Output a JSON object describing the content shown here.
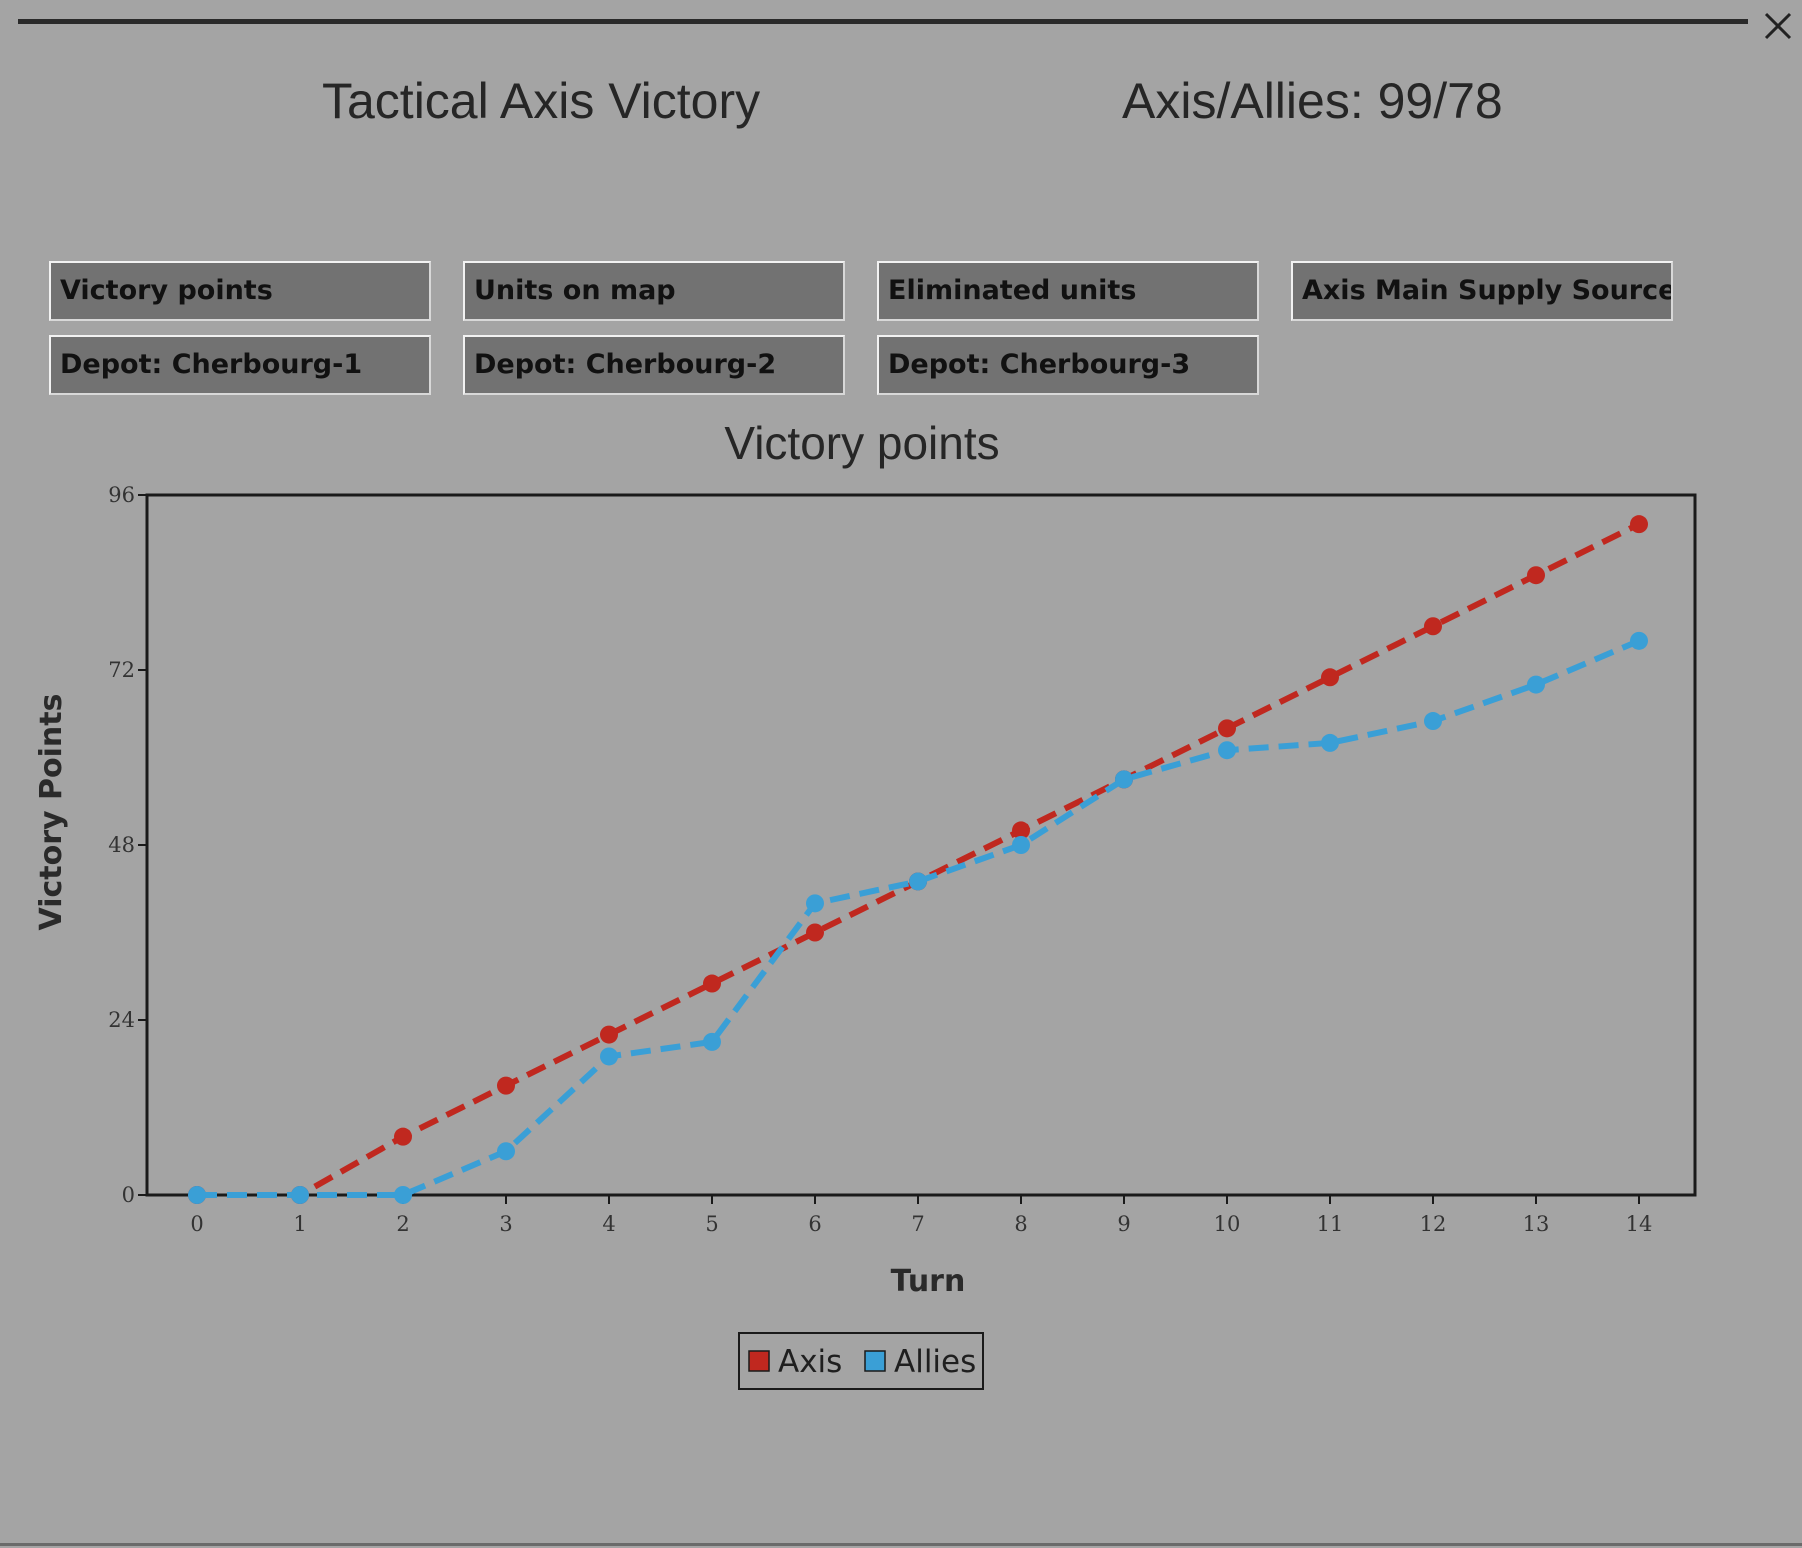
{
  "header": {
    "result": "Tactical Axis Victory",
    "score": "Axis/Allies: 99/78"
  },
  "window": {
    "close_icon": "close-icon"
  },
  "tabs": [
    {
      "label": "Victory points"
    },
    {
      "label": "Units on map"
    },
    {
      "label": "Eliminated units"
    },
    {
      "label": "Axis Main Supply Source"
    },
    {
      "label": "Depot: Cherbourg-1"
    },
    {
      "label": "Depot: Cherbourg-2"
    },
    {
      "label": "Depot: Cherbourg-3"
    }
  ],
  "chart_data": {
    "type": "line",
    "title": "Victory points",
    "xlabel": "Turn",
    "ylabel": "Victory Points",
    "x": [
      0,
      1,
      2,
      3,
      4,
      5,
      6,
      7,
      8,
      9,
      10,
      11,
      12,
      13,
      14
    ],
    "xticks": [
      "0",
      "1",
      "2",
      "3",
      "4",
      "5",
      "6",
      "7",
      "8",
      "9",
      "10",
      "11",
      "12",
      "13",
      "14"
    ],
    "yticks": [
      "0",
      "24",
      "48",
      "72",
      "96"
    ],
    "ylim": [
      0,
      96
    ],
    "grid": false,
    "legend_position": "bottom-center",
    "series": [
      {
        "name": "Axis",
        "color": "#c0281f",
        "values": [
          0,
          0,
          8,
          15,
          22,
          29,
          36,
          43,
          50,
          57,
          64,
          71,
          78,
          85,
          92
        ]
      },
      {
        "name": "Allies",
        "color": "#3a9fd6",
        "values": [
          0,
          0,
          0,
          6,
          19,
          21,
          40,
          43,
          48,
          57,
          61,
          62,
          65,
          70,
          76
        ]
      }
    ]
  }
}
